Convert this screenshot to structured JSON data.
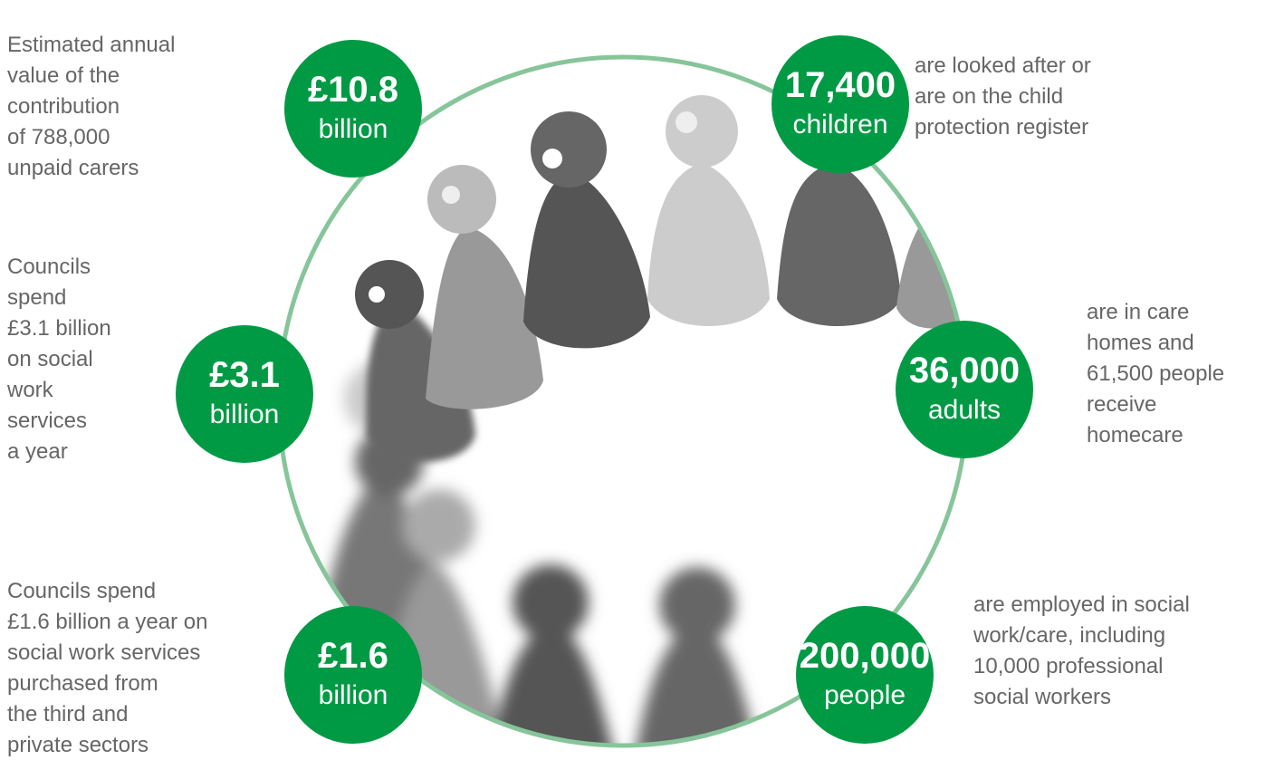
{
  "items": [
    {
      "value": "£10.8",
      "unit": "billion",
      "description": [
        "Estimated annual",
        "value of the",
        "contribution",
        "of 788,000",
        "unpaid carers"
      ]
    },
    {
      "value": "17,400",
      "unit": "children",
      "description": [
        "are looked after or",
        "are on the child",
        "protection register"
      ]
    },
    {
      "value": "£3.1",
      "unit": "billion",
      "description": [
        "Councils",
        "spend",
        "£3.1 billion",
        "on social",
        "work",
        "services",
        "a year"
      ]
    },
    {
      "value": "36,000",
      "unit": "adults",
      "description": [
        "are in care",
        "homes and",
        "61,500 people",
        "receive",
        "homecare"
      ]
    },
    {
      "value": "£1.6",
      "unit": "billion",
      "description": [
        "Councils spend",
        "£1.6 billion a year on",
        "social work services",
        "purchased from",
        "the third and",
        "private sectors"
      ]
    },
    {
      "value": "200,000",
      "unit": "people",
      "description": [
        "are employed in social",
        "work/care, including",
        "10,000 professional",
        "social workers"
      ]
    }
  ]
}
